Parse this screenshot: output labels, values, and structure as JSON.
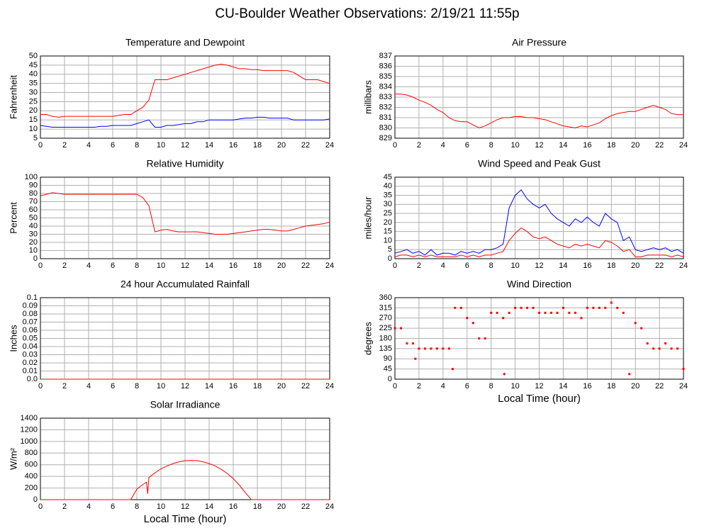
{
  "title": "CU-Boulder Weather Observations: 2/19/21 11:55p",
  "chart_data": [
    {
      "type": "line",
      "title": "Temperature and Dewpoint",
      "y_label": "Fahrenheit",
      "x": [
        0,
        0.5,
        1,
        1.5,
        2,
        2.5,
        3,
        3.5,
        4,
        4.5,
        5,
        5.5,
        6,
        6.5,
        7,
        7.5,
        8,
        8.5,
        9,
        9.5,
        10,
        10.5,
        11,
        11.5,
        12,
        12.5,
        13,
        13.5,
        14,
        14.5,
        15,
        15.5,
        16,
        16.5,
        17,
        17.5,
        18,
        18.5,
        19,
        19.5,
        20,
        20.5,
        21,
        21.5,
        22,
        22.5,
        23,
        23.5,
        24
      ],
      "series": [
        {
          "color": "#ff0000",
          "values": [
            18,
            18,
            17,
            16.5,
            17,
            17,
            17,
            17,
            17,
            17,
            17,
            17,
            17,
            17.5,
            18,
            18,
            20,
            22,
            26,
            37,
            37,
            37,
            38,
            39,
            40,
            41,
            42,
            43,
            44,
            45,
            45.5,
            45,
            44,
            43,
            43,
            42.5,
            42.5,
            42,
            42,
            42,
            42,
            42,
            41,
            39,
            37,
            37,
            37,
            36,
            35
          ]
        },
        {
          "color": "#0000ff",
          "values": [
            12,
            11.5,
            11,
            11,
            11,
            11,
            11,
            11,
            11,
            11,
            11.5,
            11.5,
            12,
            12,
            12,
            12,
            13,
            14,
            15,
            11,
            11,
            12,
            12,
            12.5,
            13,
            13,
            14,
            14,
            15,
            15,
            15,
            15,
            15,
            15.5,
            16,
            16,
            16.5,
            16.5,
            16,
            16,
            16,
            16,
            15,
            15,
            15,
            15,
            15,
            15,
            15.5
          ]
        }
      ],
      "xlim": [
        0,
        24
      ],
      "xticks": [
        0,
        2,
        4,
        6,
        8,
        10,
        12,
        14,
        16,
        18,
        20,
        22,
        24
      ],
      "ylim": [
        5,
        50
      ],
      "yticks": [
        5,
        10,
        15,
        20,
        25,
        30,
        35,
        40,
        45,
        50
      ],
      "grid": true
    },
    {
      "type": "line",
      "title": "Air Pressure",
      "y_label": "millibars",
      "x": [
        0,
        0.5,
        1,
        1.5,
        2,
        2.5,
        3,
        3.5,
        4,
        4.5,
        5,
        5.5,
        6,
        6.5,
        7,
        7.5,
        8,
        8.5,
        9,
        9.5,
        10,
        10.5,
        11,
        11.5,
        12,
        12.5,
        13,
        13.5,
        14,
        14.5,
        15,
        15.5,
        16,
        16.5,
        17,
        17.5,
        18,
        18.5,
        19,
        19.5,
        20,
        20.5,
        21,
        21.5,
        22,
        22.5,
        23,
        23.5,
        24
      ],
      "series": [
        {
          "color": "#ff0000",
          "values": [
            833.3,
            833.3,
            833.2,
            833,
            832.7,
            832.5,
            832.2,
            831.8,
            831.5,
            831,
            830.7,
            830.6,
            830.6,
            830.3,
            830,
            830.2,
            830.5,
            830.8,
            831,
            831,
            831.1,
            831.1,
            831,
            831,
            830.9,
            830.8,
            830.6,
            830.4,
            830.2,
            830.1,
            830,
            830.2,
            830.1,
            830.3,
            830.5,
            830.9,
            831.2,
            831.4,
            831.5,
            831.6,
            831.6,
            831.8,
            832,
            832.2,
            832,
            831.8,
            831.4,
            831.3,
            831.3
          ]
        }
      ],
      "xlim": [
        0,
        24
      ],
      "xticks": [
        0,
        2,
        4,
        6,
        8,
        10,
        12,
        14,
        16,
        18,
        20,
        22,
        24
      ],
      "ylim": [
        829,
        837
      ],
      "yticks": [
        829,
        830,
        831,
        832,
        833,
        834,
        835,
        836,
        837
      ],
      "grid": true
    },
    {
      "type": "line",
      "title": "Relative Humidity",
      "y_label": "Percent",
      "x": [
        0,
        0.5,
        1,
        1.5,
        2,
        2.5,
        3,
        3.5,
        4,
        4.5,
        5,
        5.5,
        6,
        6.5,
        7,
        7.5,
        8,
        8.5,
        9,
        9.5,
        10,
        10.5,
        11,
        11.5,
        12,
        12.5,
        13,
        13.5,
        14,
        14.5,
        15,
        15.5,
        16,
        16.5,
        17,
        17.5,
        18,
        18.5,
        19,
        19.5,
        20,
        20.5,
        21,
        21.5,
        22,
        22.5,
        23,
        23.5,
        24
      ],
      "series": [
        {
          "color": "#ff0000",
          "values": [
            77,
            79,
            81,
            80,
            79,
            79,
            79,
            79,
            79,
            79,
            79,
            79,
            79,
            79,
            79,
            79,
            79,
            75,
            65,
            33,
            35,
            36,
            34,
            33,
            33,
            33,
            33,
            32,
            31,
            30,
            30,
            30,
            31,
            32,
            33,
            34,
            35,
            36,
            36,
            35,
            34,
            34,
            36,
            38,
            40,
            41,
            42,
            43,
            45
          ]
        }
      ],
      "xlim": [
        0,
        24
      ],
      "xticks": [
        0,
        2,
        4,
        6,
        8,
        10,
        12,
        14,
        16,
        18,
        20,
        22,
        24
      ],
      "ylim": [
        0,
        100
      ],
      "yticks": [
        0,
        10,
        20,
        30,
        40,
        50,
        60,
        70,
        80,
        90,
        100
      ],
      "grid": true
    },
    {
      "type": "line",
      "title": "Wind Speed and Peak Gust",
      "y_label": "miles/hour",
      "x": [
        0,
        0.5,
        1,
        1.5,
        2,
        2.5,
        3,
        3.5,
        4,
        4.5,
        5,
        5.5,
        6,
        6.5,
        7,
        7.5,
        8,
        8.5,
        9,
        9.5,
        10,
        10.5,
        11,
        11.5,
        12,
        12.5,
        13,
        13.5,
        14,
        14.5,
        15,
        15.5,
        16,
        16.5,
        17,
        17.5,
        18,
        18.5,
        19,
        19.5,
        20,
        20.5,
        21,
        21.5,
        22,
        22.5,
        23,
        23.5,
        24
      ],
      "series": [
        {
          "color": "#0000ff",
          "values": [
            3,
            4,
            5,
            3,
            4,
            2,
            5,
            2,
            3,
            3,
            2,
            4,
            3,
            4,
            3,
            5,
            5,
            6,
            8,
            28,
            35,
            38,
            33,
            30,
            28,
            30,
            25,
            22,
            20,
            18,
            22,
            20,
            23,
            20,
            18,
            25,
            22,
            20,
            10,
            12,
            5,
            4,
            5,
            6,
            5,
            6,
            4,
            5,
            3
          ]
        },
        {
          "color": "#ff0000",
          "values": [
            1,
            2,
            2,
            1,
            2,
            1,
            2,
            1,
            1,
            1,
            1,
            2,
            1,
            2,
            1,
            2,
            2,
            3,
            4,
            10,
            14,
            17,
            15,
            12,
            11,
            12,
            10,
            8,
            7,
            6,
            8,
            7,
            8,
            7,
            6,
            10,
            9,
            7,
            4,
            5,
            1,
            1,
            2,
            2,
            2,
            2,
            1,
            2,
            1
          ]
        }
      ],
      "xlim": [
        0,
        24
      ],
      "xticks": [
        0,
        2,
        4,
        6,
        8,
        10,
        12,
        14,
        16,
        18,
        20,
        22,
        24
      ],
      "ylim": [
        0,
        45
      ],
      "yticks": [
        0,
        5,
        10,
        15,
        20,
        25,
        30,
        35,
        40,
        45
      ],
      "grid": true
    },
    {
      "type": "line",
      "title": "24 hour Accumulated Rainfall",
      "y_label": "Inches",
      "x": [
        0,
        24
      ],
      "series": [
        {
          "color": "#ff0000",
          "values": [
            0,
            0
          ]
        }
      ],
      "xlim": [
        0,
        24
      ],
      "xticks": [
        0,
        2,
        4,
        6,
        8,
        10,
        12,
        14,
        16,
        18,
        20,
        22,
        24
      ],
      "ylim": [
        0,
        0.1
      ],
      "yticks": [
        {
          "value": 0,
          "label": "0.0"
        },
        0.01,
        0.02,
        0.03,
        0.04,
        0.05,
        0.06,
        0.07,
        0.08,
        0.09,
        0.1
      ],
      "grid": true
    },
    {
      "type": "scatter",
      "title": "Wind Direction",
      "y_label": "degrees",
      "x_label": "Local Time (hour)",
      "x": [
        0,
        0.5,
        1,
        1.5,
        1.7,
        2,
        2.5,
        3,
        3.5,
        4,
        4.5,
        4.8,
        5,
        5.5,
        6,
        6.5,
        7,
        7.5,
        8,
        8.5,
        9,
        9.1,
        9.5,
        10,
        10.5,
        11,
        11.5,
        12,
        12.5,
        13,
        13.5,
        14,
        14.5,
        15,
        15.5,
        16,
        16.5,
        17,
        17.5,
        18,
        18.5,
        19,
        19.5,
        20,
        20.5,
        21,
        21.5,
        22,
        22.5,
        23,
        23.5,
        24
      ],
      "series": [
        {
          "color": "#ff0000",
          "values": [
            225,
            225,
            158,
            158,
            90,
            135,
            135,
            135,
            135,
            135,
            135,
            45,
            315,
            315,
            270,
            248,
            180,
            180,
            293,
            293,
            270,
            22.5,
            293,
            315,
            315,
            315,
            315,
            293,
            293,
            293,
            293,
            315,
            293,
            293,
            270,
            315,
            315,
            315,
            315,
            338,
            315,
            293,
            22.5,
            248,
            225,
            158,
            135,
            135,
            158,
            135,
            135,
            45
          ]
        }
      ],
      "xlim": [
        0,
        24
      ],
      "xticks": [
        0,
        2,
        4,
        6,
        8,
        10,
        12,
        14,
        16,
        18,
        20,
        22,
        24
      ],
      "ylim": [
        0,
        360
      ],
      "yticks": [
        0,
        45,
        90,
        135,
        180,
        225,
        270,
        315,
        360
      ],
      "grid": true
    },
    {
      "type": "line",
      "title": "Solar Irradiance",
      "y_label": "W/m²",
      "x_label": "Local Time (hour)",
      "x": [
        0,
        0.5,
        1,
        1.5,
        2,
        2.5,
        3,
        3.5,
        4,
        4.5,
        5,
        5.5,
        6,
        6.5,
        7,
        7.5,
        8,
        8.5,
        8.8,
        8.9,
        9,
        9.5,
        10,
        10.5,
        11,
        11.5,
        12,
        12.5,
        13,
        13.5,
        14,
        14.5,
        15,
        15.5,
        16,
        16.5,
        17,
        17.5,
        18,
        18.5,
        19,
        19.5,
        20,
        20.5,
        21,
        21.5,
        22,
        22.5,
        23,
        23.5,
        24
      ],
      "series": [
        {
          "color": "#ff0000",
          "values": [
            0,
            0,
            0,
            0,
            0,
            0,
            0,
            0,
            0,
            0,
            0,
            0,
            0,
            0,
            0,
            0,
            180,
            260,
            300,
            100,
            380,
            460,
            530,
            580,
            620,
            650,
            670,
            675,
            670,
            650,
            620,
            580,
            520,
            450,
            360,
            250,
            120,
            0,
            0,
            0,
            0,
            0,
            0,
            0,
            0,
            0,
            0,
            0,
            0,
            0,
            0
          ]
        }
      ],
      "xlim": [
        0,
        24
      ],
      "xticks": [
        0,
        2,
        4,
        6,
        8,
        10,
        12,
        14,
        16,
        18,
        20,
        22,
        24
      ],
      "ylim": [
        0,
        1400
      ],
      "yticks": [
        0,
        200,
        400,
        600,
        800,
        1000,
        1200,
        1400
      ],
      "grid": true
    }
  ]
}
